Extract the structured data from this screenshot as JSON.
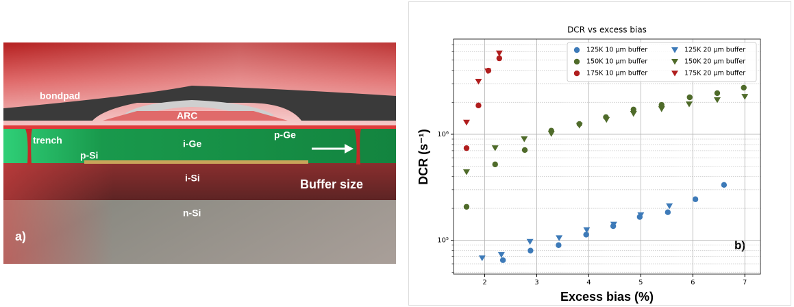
{
  "illustration": {
    "labels": [
      "bondpad",
      "ARC",
      "trench",
      "p-Ge",
      "i-Ge",
      "p-Si",
      "i-Si",
      "Buffer size",
      "n-Si",
      "a)"
    ]
  },
  "chart_data": {
    "type": "scatter",
    "title": "DCR vs excess bias",
    "x_label": "Excess bias (%)",
    "y_label": "DCR (s⁻¹)",
    "annotations": [
      "b)"
    ],
    "xlim": [
      1.4,
      7.3
    ],
    "xticks": [
      2,
      3,
      4,
      5,
      6,
      7
    ],
    "ylim": [
      48000,
      7900000
    ],
    "yscale": "log",
    "yticks": [
      {
        "value": 100000,
        "label": "10⁵"
      },
      {
        "value": 1000000,
        "label": "10⁶"
      }
    ],
    "yminorticks": [
      50000,
      60000,
      70000,
      80000,
      90000,
      200000,
      300000,
      400000,
      500000,
      600000,
      700000,
      800000,
      900000,
      2000000,
      3000000,
      4000000,
      5000000,
      6000000,
      7000000
    ],
    "grid": true,
    "legend": "upper right",
    "legend_columns": 2,
    "series": [
      {
        "name": "125K 10 μm buffer",
        "color": "#3d7ab8",
        "marker": "circle",
        "x": [
          2.35,
          2.88,
          3.42,
          3.95,
          4.47,
          4.98,
          5.52,
          6.05,
          6.6
        ],
        "values": [
          65000,
          80000,
          90000,
          113000,
          136000,
          166000,
          184000,
          244000,
          333000
        ]
      },
      {
        "name": "150K 10 μm buffer",
        "color": "#4f6b2a",
        "marker": "circle",
        "x": [
          1.65,
          2.2,
          2.77,
          3.28,
          3.82,
          4.33,
          4.86,
          5.4,
          5.94,
          6.47,
          6.98
        ],
        "values": [
          207000,
          520000,
          710000,
          1080000,
          1250000,
          1450000,
          1710000,
          1890000,
          2230000,
          2440000,
          2750000
        ]
      },
      {
        "name": "175K 10 μm buffer",
        "color": "#b01e1e",
        "marker": "circle",
        "x": [
          1.65,
          1.88,
          2.07,
          2.28
        ],
        "values": [
          740000,
          1870000,
          3980000,
          5200000
        ]
      },
      {
        "name": "125K 20 μm buffer",
        "color": "#3d7ab8",
        "marker": "triangle-down",
        "x": [
          1.95,
          2.32,
          2.87,
          3.43,
          3.96,
          4.48,
          5.0,
          5.55
        ],
        "values": [
          68000,
          73000,
          97000,
          105000,
          125000,
          141000,
          173000,
          210000
        ]
      },
      {
        "name": "150K 20 μm buffer",
        "color": "#4f6b2a",
        "marker": "triangle-down",
        "x": [
          1.65,
          2.2,
          2.76,
          3.28,
          3.82,
          4.34,
          4.86,
          5.4,
          5.93,
          6.47,
          7.0
        ],
        "values": [
          440000,
          740000,
          900000,
          1010000,
          1210000,
          1370000,
          1560000,
          1730000,
          1920000,
          2100000,
          2260000
        ]
      },
      {
        "name": "175K 20 μm buffer",
        "color": "#b01e1e",
        "marker": "triangle-down",
        "x": [
          1.65,
          1.88,
          2.06,
          2.28
        ],
        "values": [
          1290000,
          3140000,
          3930000,
          5800000
        ]
      }
    ]
  }
}
